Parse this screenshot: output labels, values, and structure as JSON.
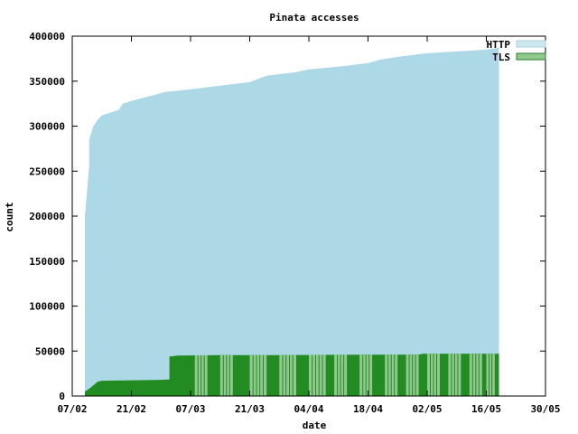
{
  "chart_data": {
    "type": "area",
    "title": "Pinata accesses",
    "xlabel": "date",
    "ylabel": "count",
    "x_axis": {
      "type": "date",
      "range": [
        "2013-02-07",
        "2013-05-30"
      ],
      "ticks": [
        {
          "date": "2013-02-07",
          "label": "07/02"
        },
        {
          "date": "2013-02-21",
          "label": "21/02"
        },
        {
          "date": "2013-03-07",
          "label": "07/03"
        },
        {
          "date": "2013-03-21",
          "label": "21/03"
        },
        {
          "date": "2013-04-04",
          "label": "04/04"
        },
        {
          "date": "2013-04-18",
          "label": "18/04"
        },
        {
          "date": "2013-05-02",
          "label": "02/05"
        },
        {
          "date": "2013-05-16",
          "label": "16/05"
        },
        {
          "date": "2013-05-30",
          "label": "30/05"
        }
      ]
    },
    "y_axis": {
      "range": [
        0,
        400000
      ],
      "ticks": [
        0,
        50000,
        100000,
        150000,
        200000,
        250000,
        300000,
        350000,
        400000
      ]
    },
    "grid": false,
    "legend": {
      "position": "top-right"
    },
    "series": [
      {
        "name": "HTTP",
        "fill": "#add8e6",
        "legend_fill": "#cde8f0",
        "points": [
          [
            "2013-02-10",
            0
          ],
          [
            "2013-02-10",
            145000
          ],
          [
            "2013-02-10",
            200000
          ],
          [
            "2013-02-11",
            255000
          ],
          [
            "2013-02-11",
            285000
          ],
          [
            "2013-02-12",
            300000
          ],
          [
            "2013-02-13",
            307000
          ],
          [
            "2013-02-14",
            312000
          ],
          [
            "2013-02-16",
            315000
          ],
          [
            "2013-02-18",
            318000
          ],
          [
            "2013-02-19",
            325000
          ],
          [
            "2013-02-21",
            328000
          ],
          [
            "2013-02-25",
            333000
          ],
          [
            "2013-03-01",
            338000
          ],
          [
            "2013-03-07",
            341000
          ],
          [
            "2013-03-14",
            345000
          ],
          [
            "2013-03-21",
            349000
          ],
          [
            "2013-03-25",
            356000
          ],
          [
            "2013-04-01",
            360000
          ],
          [
            "2013-04-04",
            363000
          ],
          [
            "2013-04-11",
            366000
          ],
          [
            "2013-04-18",
            370000
          ],
          [
            "2013-04-21",
            374000
          ],
          [
            "2013-04-25",
            377000
          ],
          [
            "2013-05-02",
            381000
          ],
          [
            "2013-05-09",
            383000
          ],
          [
            "2013-05-16",
            385000
          ],
          [
            "2013-05-19",
            387000
          ]
        ]
      },
      {
        "name": "TLS",
        "fill": "#228b22",
        "legend_fill": "#90c890",
        "points": [
          [
            "2013-02-10",
            0
          ],
          [
            "2013-02-10",
            5000
          ],
          [
            "2013-02-11",
            8000
          ],
          [
            "2013-02-12",
            12000
          ],
          [
            "2013-02-13",
            16000
          ],
          [
            "2013-02-14",
            17000
          ],
          [
            "2013-02-21",
            17500
          ],
          [
            "2013-02-28",
            18000
          ],
          [
            "2013-03-02",
            18500
          ],
          [
            "2013-03-02",
            44000
          ],
          [
            "2013-03-04",
            45000
          ],
          [
            "2013-03-14",
            45500
          ],
          [
            "2013-03-28",
            45500
          ],
          [
            "2013-04-18",
            46000
          ],
          [
            "2013-04-30",
            46000
          ],
          [
            "2013-05-01",
            47000
          ],
          [
            "2013-05-19",
            47000
          ]
        ],
        "light_ranges": [
          [
            "2013-03-08",
            "2013-03-11"
          ],
          [
            "2013-03-14",
            "2013-03-17"
          ],
          [
            "2013-03-21",
            "2013-03-25"
          ],
          [
            "2013-03-28",
            "2013-04-01"
          ],
          [
            "2013-04-04",
            "2013-04-08"
          ],
          [
            "2013-04-10",
            "2013-04-13"
          ],
          [
            "2013-04-16",
            "2013-04-19"
          ],
          [
            "2013-04-22",
            "2013-04-25"
          ],
          [
            "2013-04-27",
            "2013-04-30"
          ],
          [
            "2013-05-02",
            "2013-05-05"
          ],
          [
            "2013-05-07",
            "2013-05-10"
          ],
          [
            "2013-05-12",
            "2013-05-15"
          ],
          [
            "2013-05-16",
            "2013-05-18"
          ]
        ]
      }
    ]
  }
}
